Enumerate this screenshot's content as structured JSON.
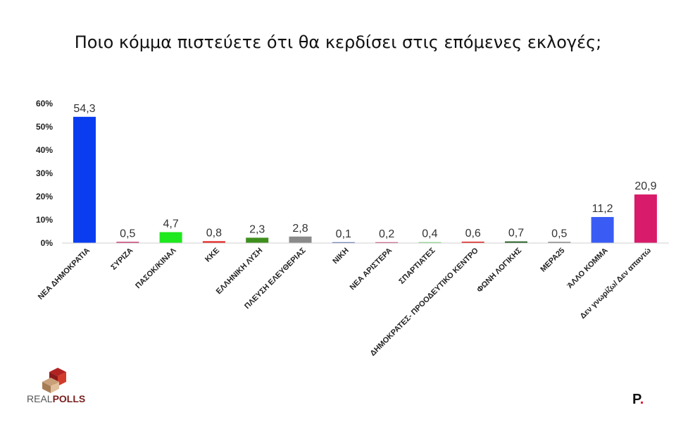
{
  "title": "Ποιο κόμμα πιστεύετε ότι θα κερδίσει στις επόμενες εκλογές;",
  "chart_data": {
    "type": "bar",
    "categories": [
      "ΝΕΑ ΔΗΜΟΚΡΑΤΙΑ",
      "ΣΥΡΙΖΑ",
      "ΠΑΣΟΚ/ΚΙΝΑΛ",
      "ΚΚΕ",
      "ΕΛΛΗΝΙΚΗ ΛΥΣΗ",
      "ΠΛΕΥΣΗ ΕΛΕΥΘΕΡΙΑΣ",
      "ΝΙΚΗ",
      "ΝΕΑ ΑΡΙΣΤΕΡΑ",
      "ΣΠΑΡΤΙΑΤΕΣ",
      "ΔΗΜΟΚΡΑΤΕΣ-  ΠΡΟΟΔΕΥΤΙΚΟ ΚΕΝΤΡΟ",
      "ΦΩΝΗ ΛΟΓΙΚΗΣ",
      "ΜΕΡΑ25",
      "ΆΛΛΟ ΚΟΜΜΑ",
      "Δεν γνωρίζω/ Δεν απαντώ"
    ],
    "values": [
      54.3,
      0.5,
      4.7,
      0.8,
      2.3,
      2.8,
      0.1,
      0.2,
      0.4,
      0.6,
      0.7,
      0.5,
      11.2,
      20.9
    ],
    "value_labels": [
      "54,3",
      "0,5",
      "4,7",
      "0,8",
      "2,3",
      "2,8",
      "0,1",
      "0,2",
      "0,4",
      "0,6",
      "0,7",
      "0,5",
      "11,2",
      "20,9"
    ],
    "colors": [
      "#0a3cf0",
      "#c2185b",
      "#1ee81e",
      "#e52222",
      "#3f8f1f",
      "#8a8a8a",
      "#2a4aa0",
      "#c2185b",
      "#6fd36f",
      "#e52222",
      "#1e5a1e",
      "#777777",
      "#3a5cf5",
      "#d81b6a"
    ],
    "yticks": [
      "0%",
      "10%",
      "20%",
      "30%",
      "40%",
      "50%",
      "60%"
    ],
    "ylim": [
      0,
      60
    ],
    "grid": false,
    "legend": "none"
  },
  "logo": {
    "text_real": "REAL",
    "text_polls": "POLLS"
  },
  "brand_mark": {
    "letter": "P",
    "dot": "."
  }
}
